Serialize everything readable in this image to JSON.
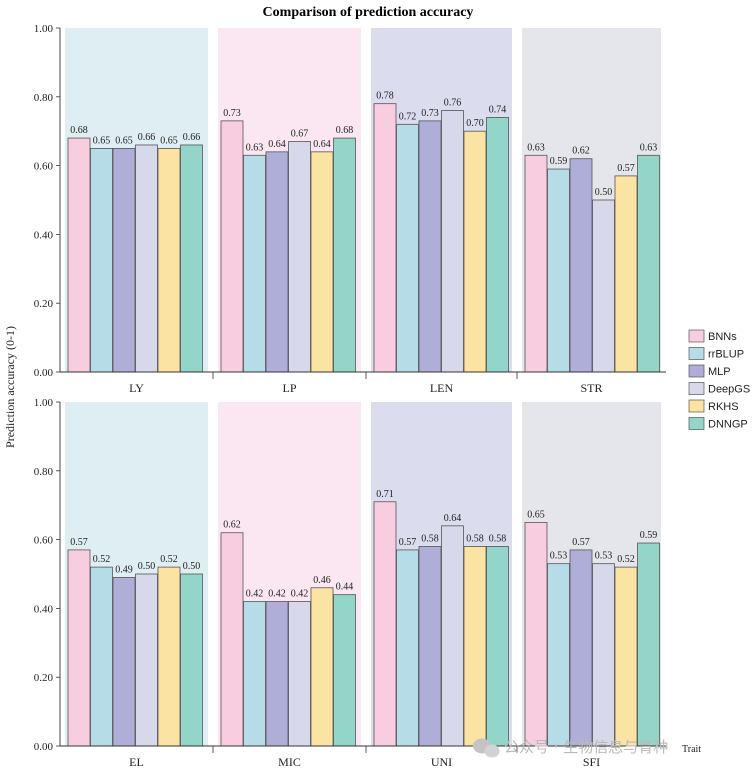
{
  "chart_data": {
    "type": "bar",
    "title": "Comparison of prediction accuracy",
    "ylabel": "Prediction accuracy (0-1)",
    "xlabel": "Trait",
    "ylim": [
      0,
      1
    ],
    "yticks": [
      "0.00",
      "0.20",
      "0.40",
      "0.60",
      "0.80",
      "1.00"
    ],
    "grid": false,
    "legend_position": "right",
    "series_names": [
      "BNNs",
      "rrBLUP",
      "MLP",
      "DeepGS",
      "RKHS",
      "DNNGP"
    ],
    "series_colors": [
      "#f8cde0",
      "#b6dce8",
      "#aeaed8",
      "#d7d8ea",
      "#fbe3a3",
      "#93d5c9"
    ],
    "panels": [
      {
        "groups": [
          {
            "trait": "LY",
            "bg": "#dfeef3",
            "values": [
              0.68,
              0.65,
              0.65,
              0.66,
              0.65,
              0.66
            ],
            "labels": [
              "0.68",
              "0.65",
              "0.65",
              "0.66",
              "0.65",
              "0.66"
            ]
          },
          {
            "trait": "LP",
            "bg": "#fbe7f1",
            "values": [
              0.73,
              0.63,
              0.64,
              0.67,
              0.64,
              0.68
            ],
            "labels": [
              "0.73",
              "0.63",
              "0.64",
              "0.67",
              "0.64",
              "0.68"
            ]
          },
          {
            "trait": "LEN",
            "bg": "#dcdcef",
            "values": [
              0.78,
              0.72,
              0.73,
              0.76,
              0.7,
              0.74
            ],
            "labels": [
              "0.78",
              "0.72",
              "0.73",
              "0.76",
              "0.70",
              "0.74"
            ]
          },
          {
            "trait": "STR",
            "bg": "#e4e6eb",
            "values": [
              0.63,
              0.59,
              0.62,
              0.5,
              0.57,
              0.63
            ],
            "labels": [
              "0.63",
              "0.59",
              "0.62",
              "0.50",
              "0.57",
              "0.63"
            ]
          }
        ]
      },
      {
        "groups": [
          {
            "trait": "EL",
            "bg": "#dfeef3",
            "values": [
              0.57,
              0.52,
              0.49,
              0.5,
              0.52,
              0.5
            ],
            "labels": [
              "0.57",
              "0.52",
              "0.49",
              "0.50",
              "0.52",
              "0.50"
            ]
          },
          {
            "trait": "MIC",
            "bg": "#fbe7f1",
            "values": [
              0.62,
              0.42,
              0.42,
              0.42,
              0.46,
              0.44
            ],
            "labels": [
              "0.62",
              "0.42",
              "0.42",
              "0.42",
              "0.46",
              "0.44"
            ]
          },
          {
            "trait": "UNI",
            "bg": "#dcdcef",
            "values": [
              0.71,
              0.57,
              0.58,
              0.64,
              0.58,
              0.58
            ],
            "labels": [
              "0.71",
              "0.57",
              "0.58",
              "0.64",
              "0.58",
              "0.58"
            ]
          },
          {
            "trait": "SFI",
            "bg": "#e4e6eb",
            "values": [
              0.65,
              0.53,
              0.57,
              0.53,
              0.52,
              0.59
            ],
            "labels": [
              "0.65",
              "0.53",
              "0.57",
              "0.53",
              "0.52",
              "0.59"
            ]
          }
        ]
      }
    ]
  },
  "watermark": "公众号 · 生物信息与育种"
}
